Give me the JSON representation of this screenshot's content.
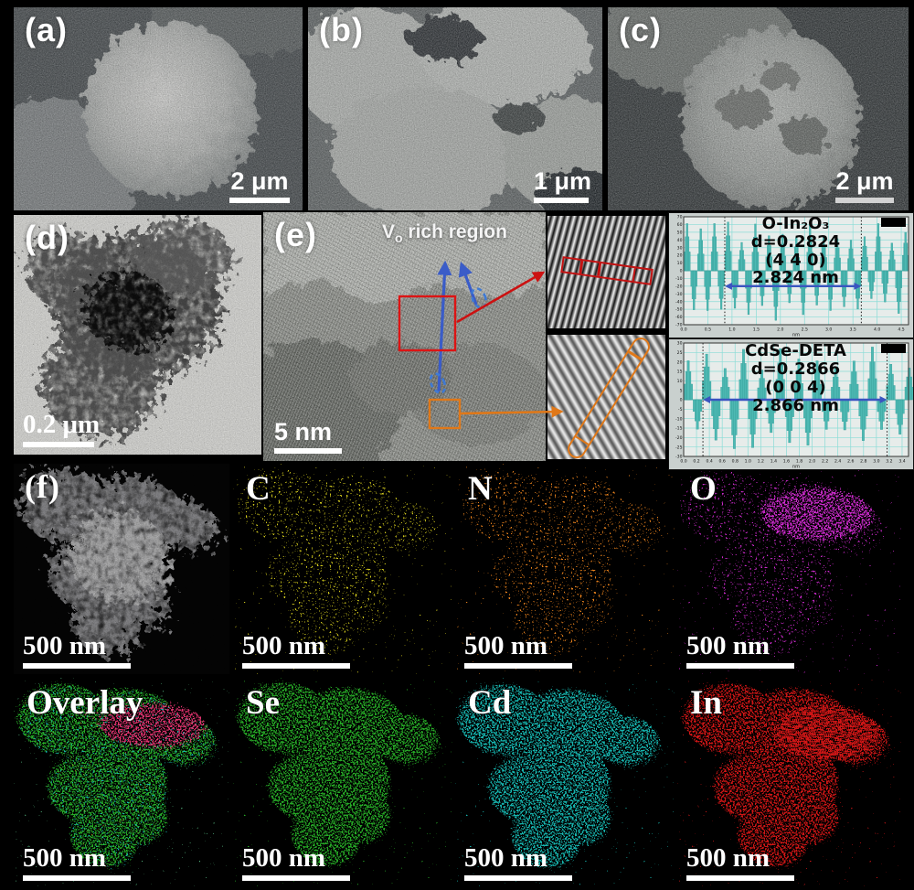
{
  "panels": {
    "a": {
      "label": "(a)",
      "scale": "2 μm",
      "type": "SEM image"
    },
    "b": {
      "label": "(b)",
      "scale": "1 μm",
      "type": "SEM image"
    },
    "c": {
      "label": "(c)",
      "scale": "2 μm",
      "type": "SEM image"
    },
    "d": {
      "label": "(d)",
      "scale": "0.2 μm",
      "type": "TEM image"
    },
    "e": {
      "label": "(e)",
      "scale": "5 nm",
      "type": "HRTEM image",
      "annotation_prefix": "V",
      "annotation_sub": "o",
      "annotation_rest": " rich region"
    },
    "f": {
      "label": "(f)",
      "scale": "500 nm",
      "type": "STEM image"
    }
  },
  "eds": [
    {
      "element": "C",
      "color": "#cdc51d",
      "scale": "500 nm"
    },
    {
      "element": "N",
      "color": "#e6801a",
      "scale": "500 nm"
    },
    {
      "element": "O",
      "color": "#cc2acc",
      "scale": "500 nm"
    },
    {
      "element": "Overlay",
      "color": "#4fae7a",
      "scale": "500 nm"
    },
    {
      "element": "Se",
      "color": "#27a827",
      "scale": "500 nm"
    },
    {
      "element": "Cd",
      "color": "#17b3ad",
      "scale": "500 nm"
    },
    {
      "element": "In",
      "color": "#cf1414",
      "scale": "500 nm"
    }
  ],
  "overlay_extra_color": "#e0336e",
  "annotation_colors": {
    "blue": "#3a5cc8",
    "red": "#cc1111",
    "orange": "#e07818"
  },
  "chart_data": [
    {
      "type": "line",
      "title": "O-In₂O₃",
      "d_label": "d=0.2824",
      "plane": "(4 4 0)",
      "spacing_label": "2.824 nm",
      "xlabel": "nm",
      "xlim": [
        0,
        4.65
      ],
      "ylim": [
        -70,
        70
      ],
      "x_ticks": [
        0.0,
        0.5,
        1.0,
        1.5,
        2.0,
        2.5,
        3.0,
        3.5,
        4.0,
        4.5
      ],
      "y_ticks": [
        70,
        60,
        50,
        40,
        30,
        20,
        10,
        0,
        -10,
        -20,
        -30,
        -40,
        -50,
        -60,
        -70
      ],
      "fringe_period_nm": 0.2824,
      "marker_lines_x": [
        0.85,
        3.674
      ],
      "arrow_y": -20,
      "series_color": "#4db9b3",
      "grid": true,
      "legend_position": "top-right"
    },
    {
      "type": "line",
      "title": "CdSe-DETA",
      "d_label": "d=0.2866",
      "plane": "(0 0 4)",
      "spacing_label": "2.866 nm",
      "xlabel": "nm",
      "xlim": [
        0,
        3.5
      ],
      "ylim": [
        -30,
        30
      ],
      "x_ticks": [
        0.0,
        0.2,
        0.4,
        0.6,
        0.8,
        1.0,
        1.2,
        1.4,
        1.6,
        1.8,
        2.0,
        2.2,
        2.4,
        2.6,
        2.8,
        3.0,
        3.2,
        3.4
      ],
      "y_ticks": [
        30,
        25,
        20,
        15,
        10,
        5,
        0,
        -5,
        -10,
        -15,
        -20,
        -25,
        -30
      ],
      "fringe_period_nm": 0.2866,
      "marker_lines_x": [
        0.3,
        3.166
      ],
      "arrow_y": 0,
      "series_color": "#4db9b3",
      "grid": true,
      "legend_position": "top-right"
    }
  ]
}
